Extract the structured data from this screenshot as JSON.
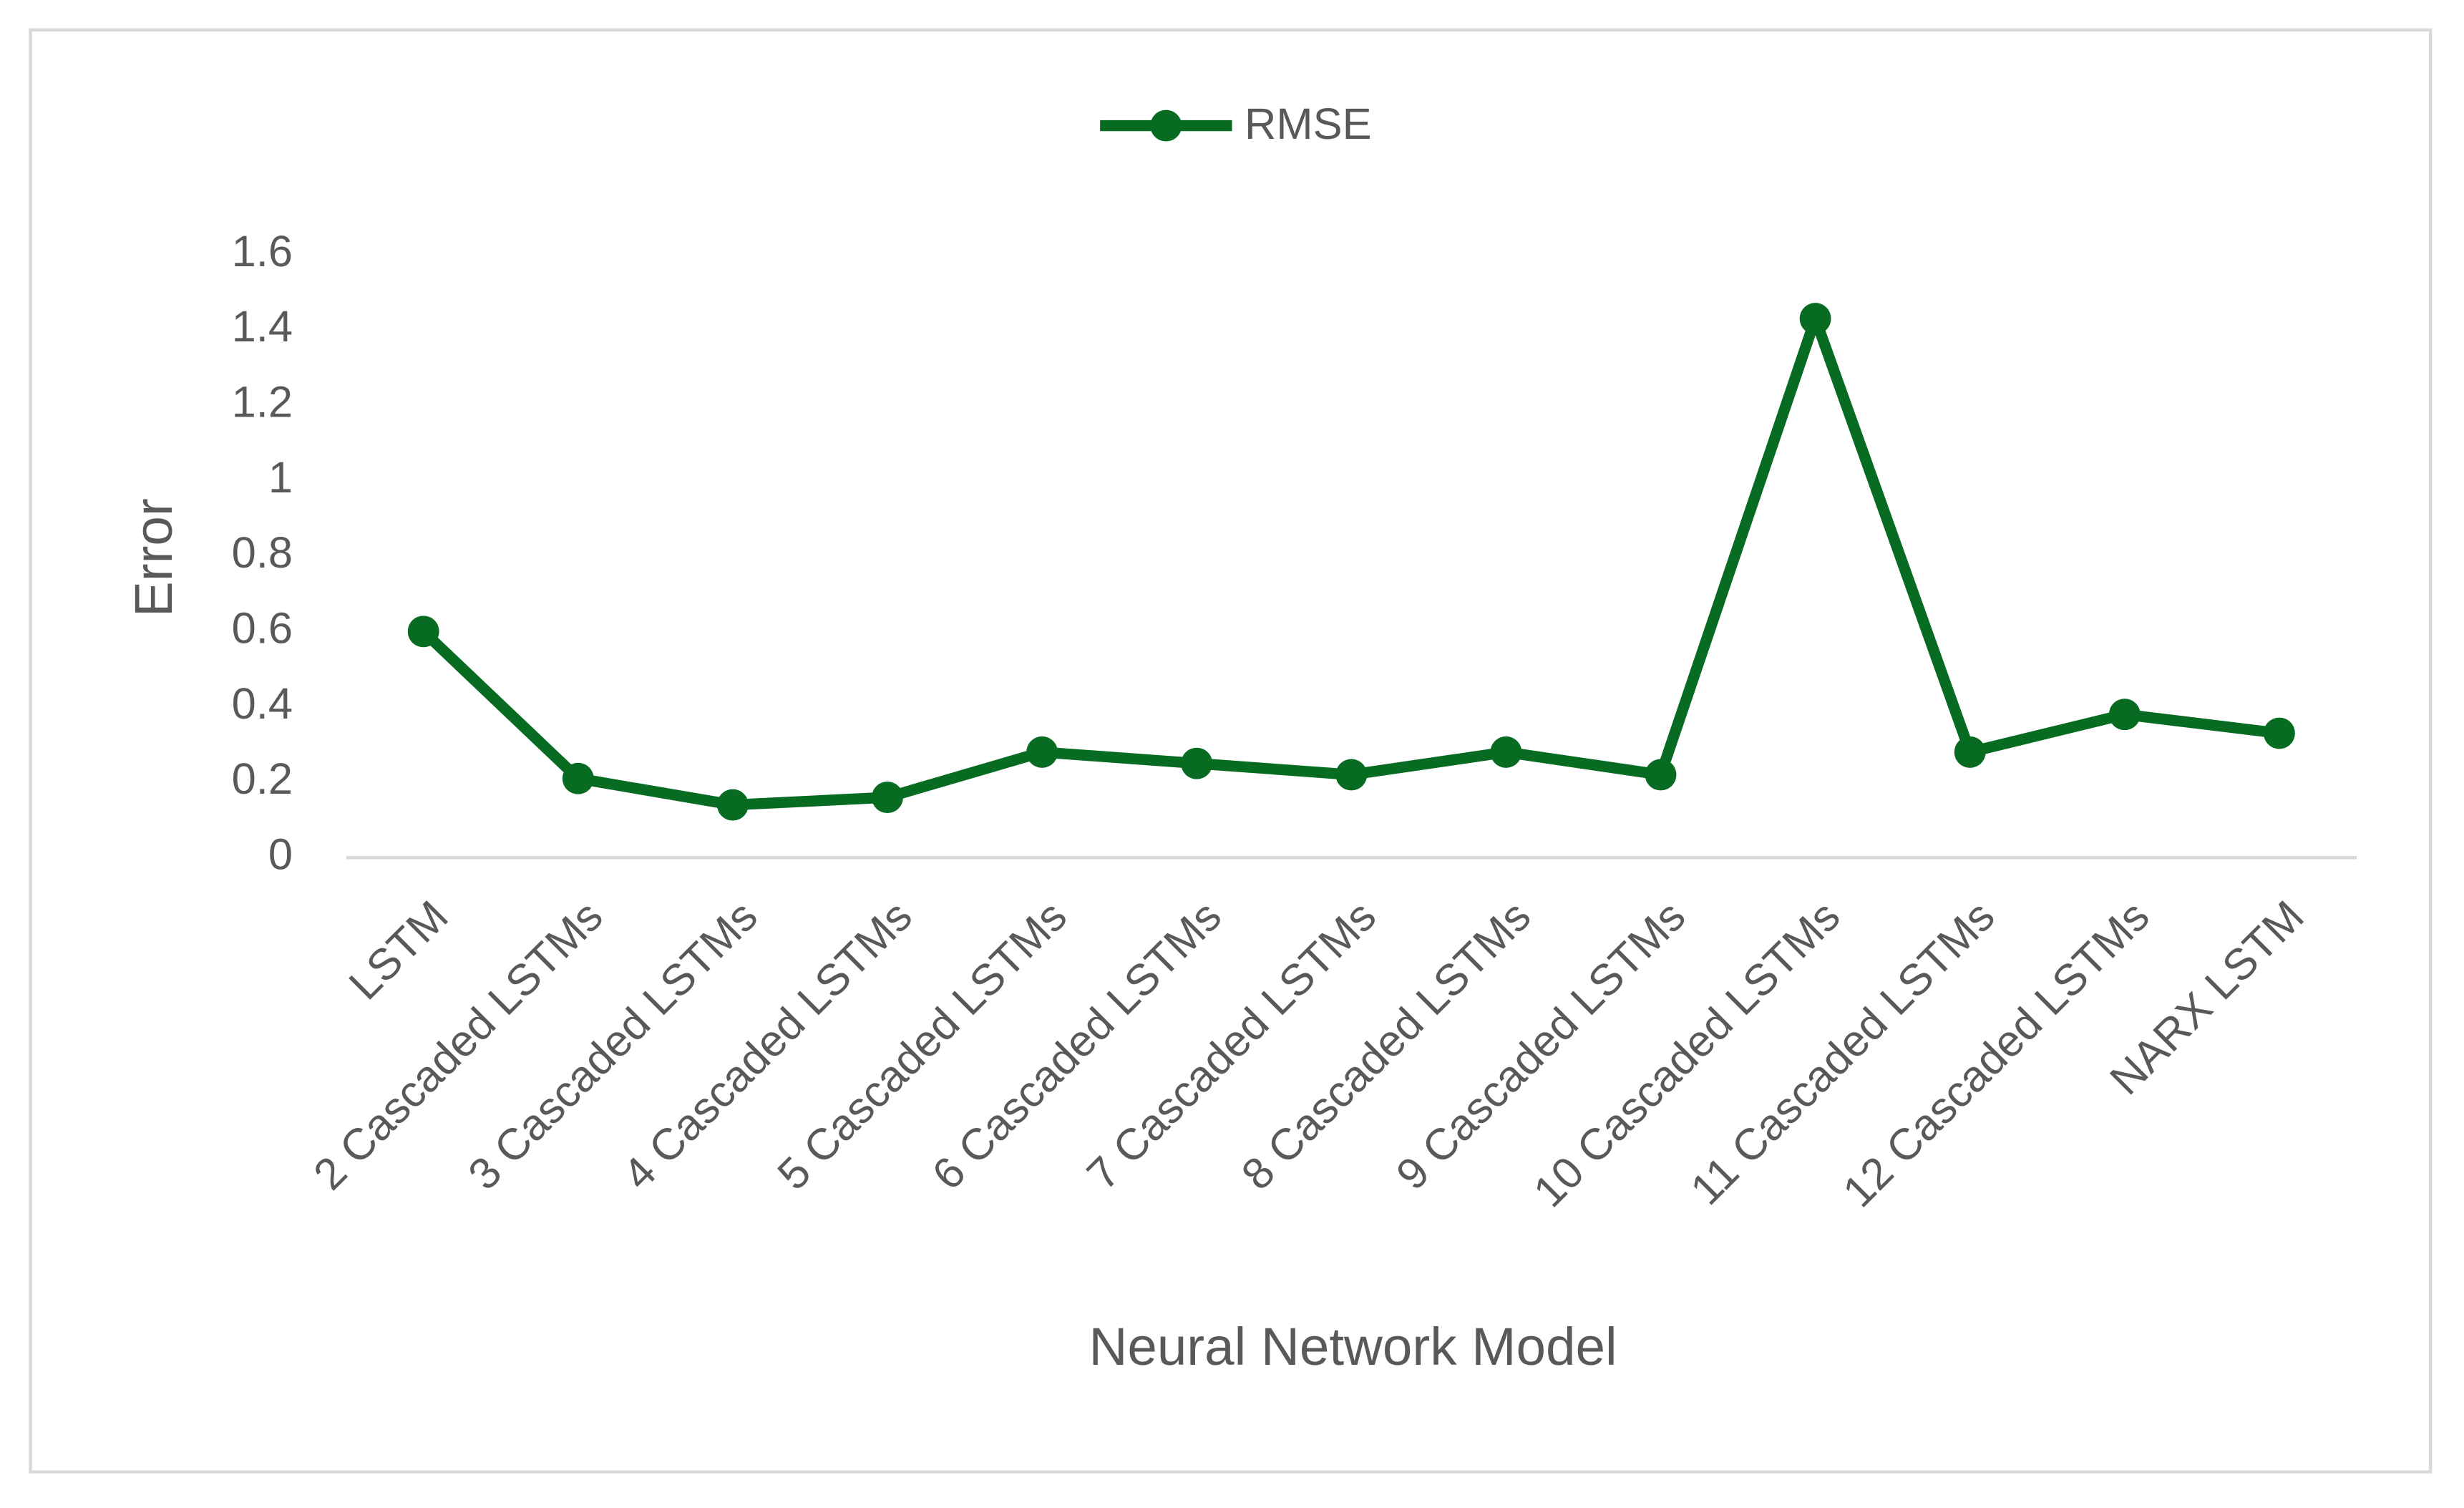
{
  "chart_data": {
    "type": "line",
    "x_label": "Neural Network Model",
    "y_label": "Error",
    "categories": [
      "LSTM",
      "2 Cascaded LSTMs",
      "3 Cascaded LSTMs",
      "4 Cascaded LSTMs",
      "5 Cascaded LSTMs",
      "6 Cascaded LSTMs",
      "7 Cascaded LSTMs",
      "8 Cascaded LSTMs",
      "9 Cascaded LSTMs",
      "10 Cascaded LSTMs",
      "11 Cascaded LSTMs",
      "12 Cascaded LSTMs",
      "NARX LSTM"
    ],
    "series": [
      {
        "name": "RMSE",
        "color": "#076b21",
        "values": [
          0.6,
          0.21,
          0.14,
          0.16,
          0.28,
          0.25,
          0.22,
          0.28,
          0.22,
          1.43,
          0.28,
          0.38,
          0.33
        ]
      }
    ],
    "ylim": [
      0,
      1.6
    ],
    "yticks": [
      0,
      0.2,
      0.4,
      0.6,
      0.8,
      1,
      1.2,
      1.4,
      1.6
    ],
    "grid": false,
    "legend": "top"
  }
}
